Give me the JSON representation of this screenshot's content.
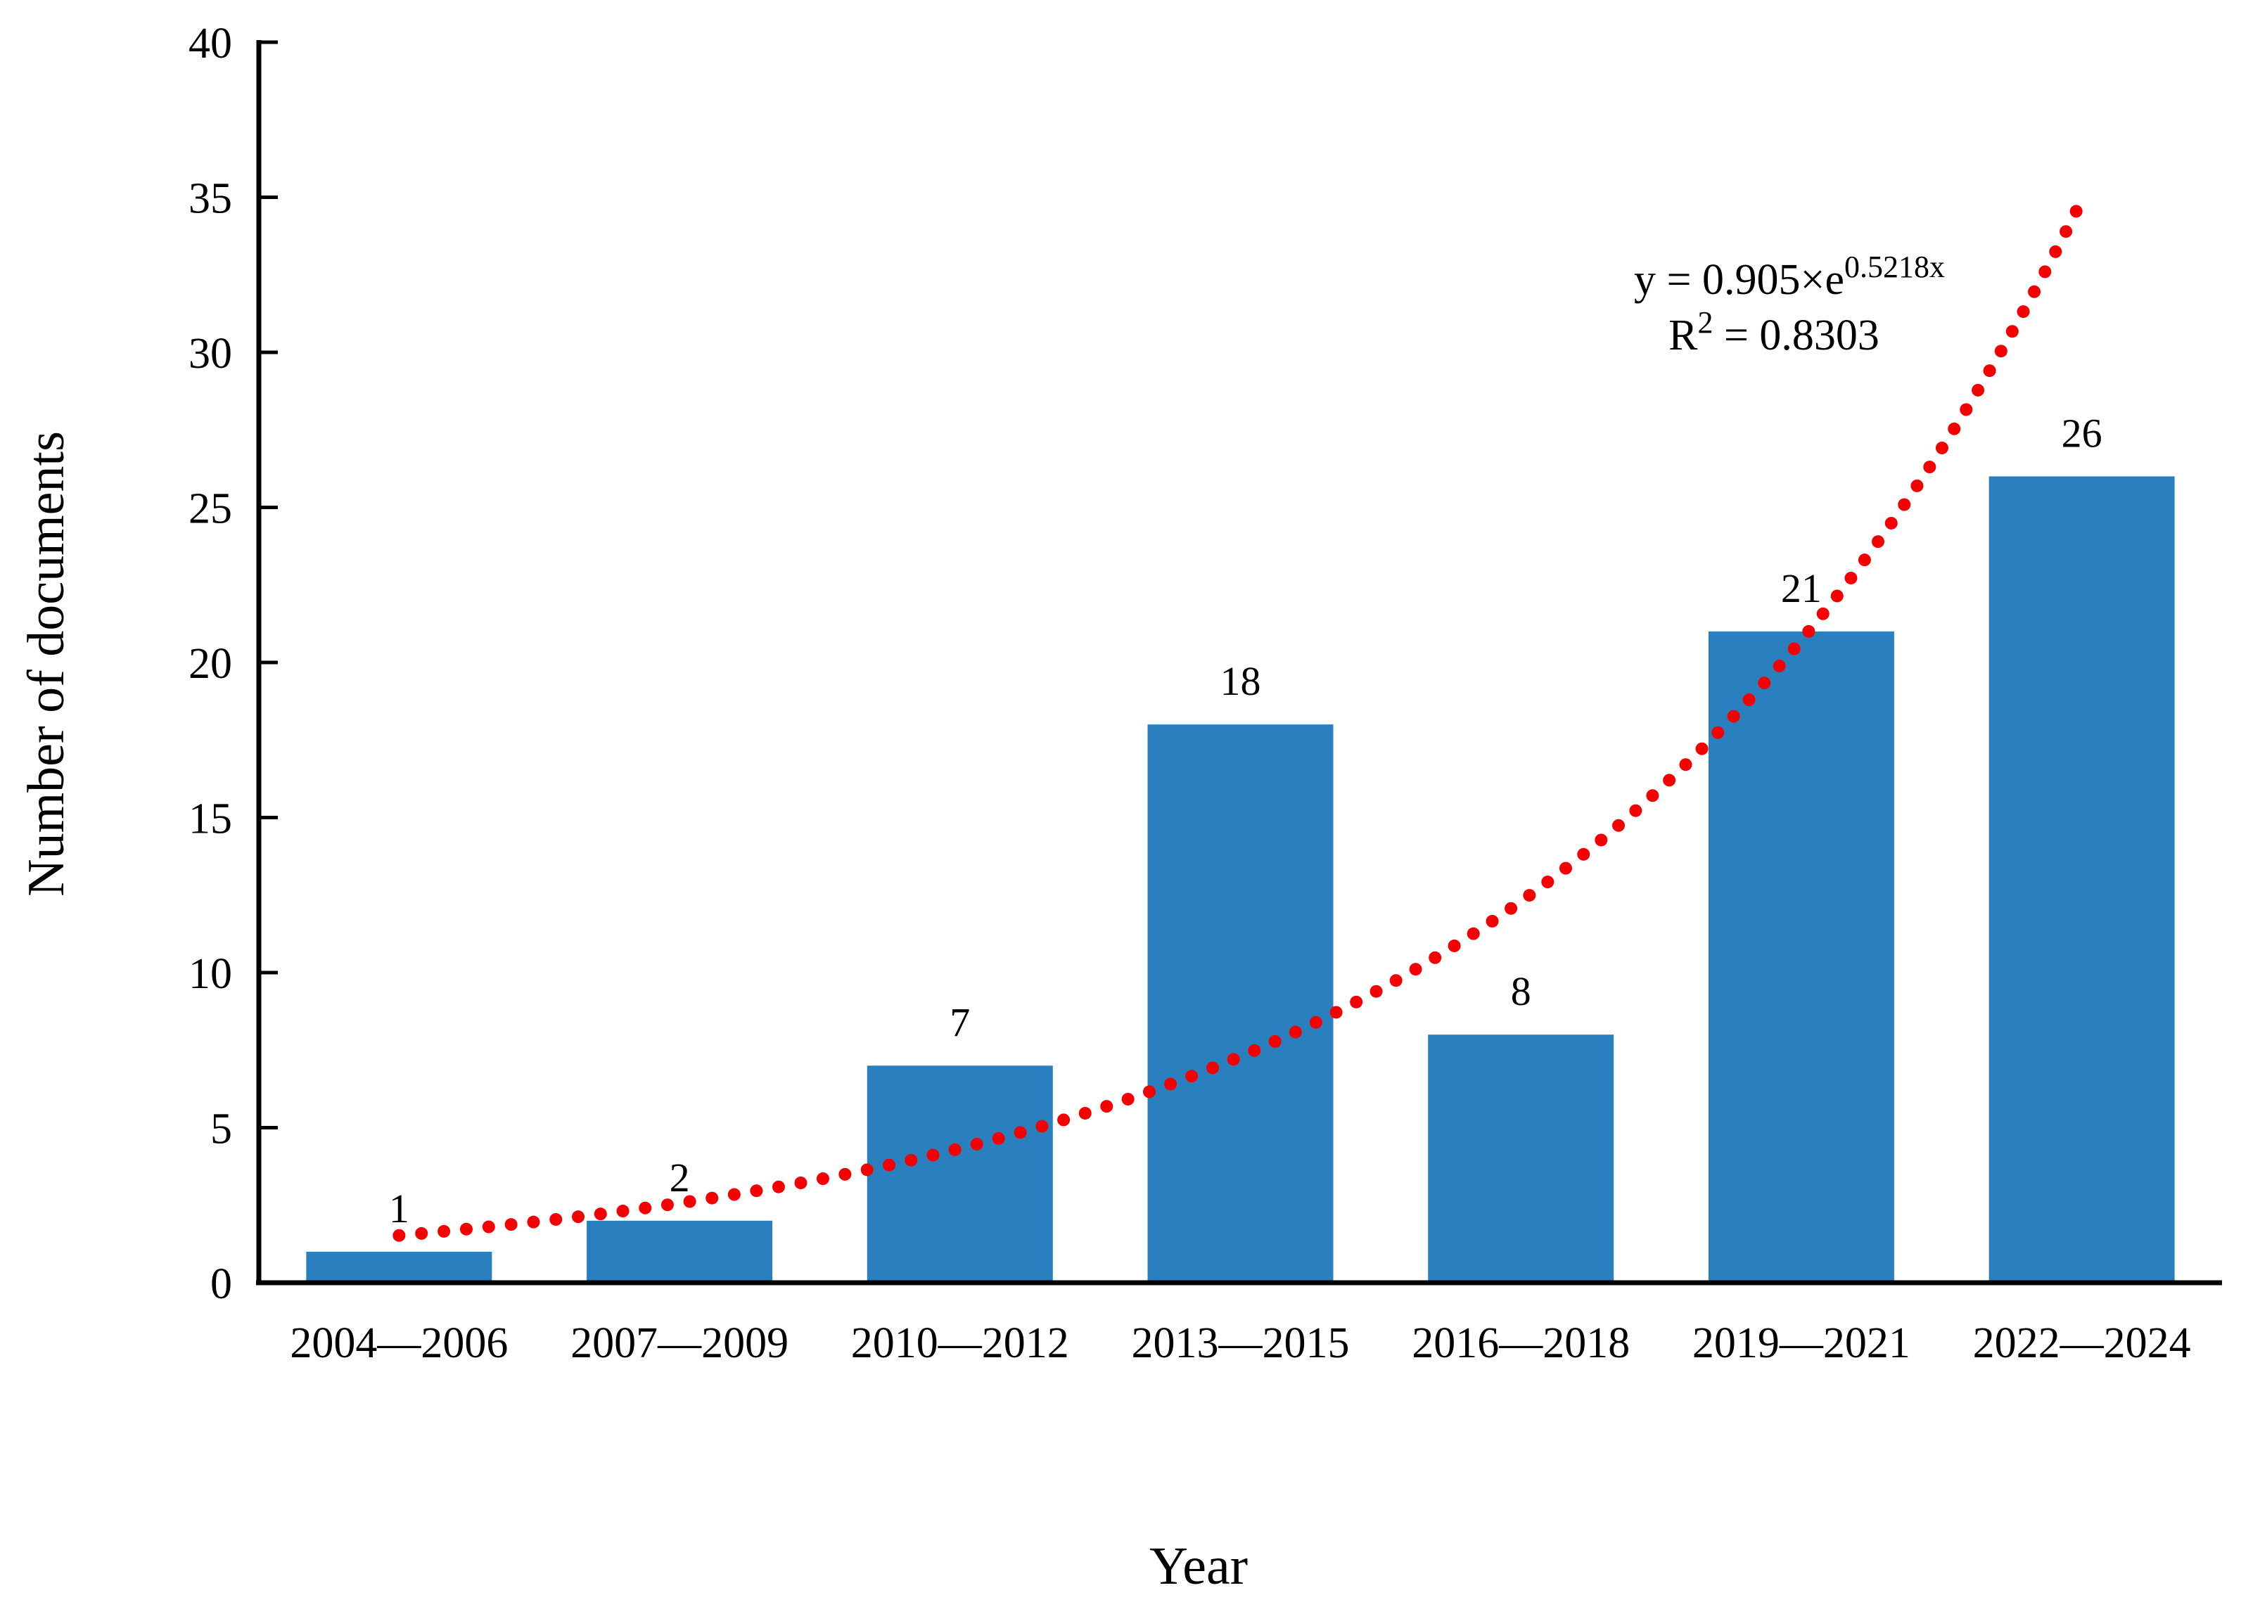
{
  "figure": {
    "background_color": "#ffffff"
  },
  "chart_data": {
    "type": "bar",
    "title": "",
    "categories": [
      "2004—2006",
      "2007—2009",
      "2010—2012",
      "2013—2015",
      "2016—2018",
      "2019—2021",
      "2022—2024"
    ],
    "values": [
      1,
      2,
      7,
      18,
      8,
      21,
      26
    ],
    "bar_value_labels": [
      "1",
      "2",
      "7",
      "18",
      "8",
      "21",
      "26"
    ],
    "xlabel": "Year",
    "ylabel": "Number of documents",
    "ylim": [
      0,
      40
    ],
    "yticks": [
      0,
      5,
      10,
      15,
      20,
      25,
      30,
      35,
      40
    ],
    "grid": false,
    "legend": false,
    "bar_color": "#2A80BF",
    "axis_color": "#000000",
    "text_color": "#000000",
    "trendline": {
      "type": "exponential",
      "color": "#F40000",
      "a": 0.905,
      "b": 0.5218,
      "x_start": 1,
      "x_end": 7,
      "equation_base": "y = 0.905×e",
      "equation_exponent": "0.5218x",
      "r2_base": "R",
      "r2_exponent": "2",
      "r2_value": " = 0.8303"
    }
  }
}
